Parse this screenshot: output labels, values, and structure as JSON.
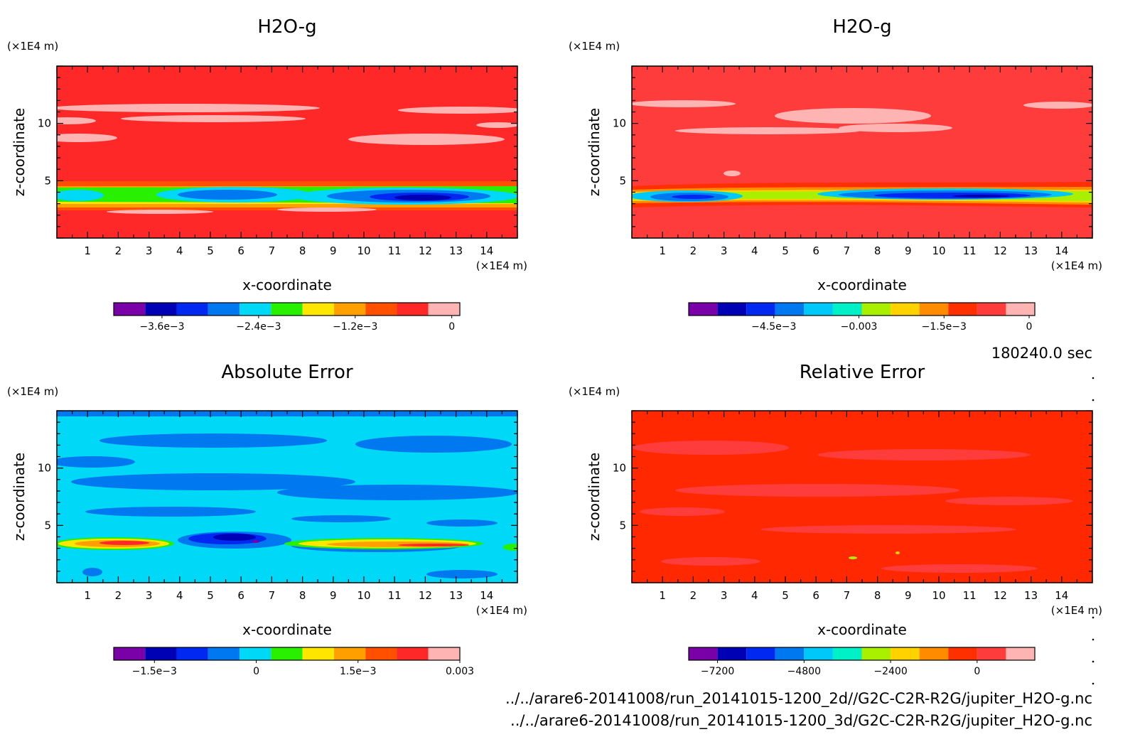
{
  "time_label": "180240.0 sec",
  "footer": [
    "../../arare6-20141008/run_20141015-1200_2d//G2C-C2R-R2G/jupiter_H2O-g.nc",
    "../../arare6-20141008/run_20141015-1200_3d/G2C-C2R-R2G/jupiter_H2O-g.nc"
  ],
  "colors": {
    "bar_2d": [
      "#7a00a8",
      "#0000b4",
      "#0028f0",
      "#0078f0",
      "#00d8f8",
      "#28f000",
      "#ffe600",
      "#ffa000",
      "#ff5000",
      "#ff2828",
      "#ffb4b4"
    ],
    "bar_3d": [
      "#7a00a8",
      "#0000b4",
      "#0028f0",
      "#0078f0",
      "#00c8f8",
      "#00f0c8",
      "#a8f000",
      "#ffd200",
      "#ff8c00",
      "#ff3000",
      "#ff3c3c",
      "#ffb4b4"
    ]
  },
  "chart_data": [
    {
      "type": "heatmap",
      "title": "H2O-g",
      "xlabel": "x-coordinate",
      "ylabel": "z-coordinate",
      "xunit": "(×1E4 m)",
      "yunit": "(×1E4 m)",
      "xlim": [
        0,
        15
      ],
      "ylim": [
        0,
        15
      ],
      "xticks": [
        1,
        2,
        3,
        4,
        5,
        6,
        7,
        8,
        9,
        10,
        11,
        12,
        13,
        14
      ],
      "yticks": [
        5,
        10
      ],
      "colorbar_labels": [
        "−3.6e−3",
        "−2.4e−3",
        "−1.2e−3",
        "0"
      ],
      "colorbar_label_values": [
        -0.0036,
        -0.0024,
        -0.0012,
        0
      ],
      "colorbar_range": [
        -0.0042,
        0.0001
      ],
      "colorbar_palette": "bar_2d"
    },
    {
      "type": "heatmap",
      "title": "H2O-g",
      "xlabel": "x-coordinate",
      "ylabel": "z-coordinate",
      "xunit": "(×1E4 m)",
      "yunit": "(×1E4 m)",
      "xlim": [
        0,
        15
      ],
      "ylim": [
        0,
        15
      ],
      "xticks": [
        1,
        2,
        3,
        4,
        5,
        6,
        7,
        8,
        9,
        10,
        11,
        12,
        13,
        14
      ],
      "yticks": [
        5,
        10
      ],
      "colorbar_labels": [
        "−4.5e−3",
        "−0.003",
        "−1.5e−3",
        "0"
      ],
      "colorbar_label_values": [
        -0.0045,
        -0.003,
        -0.0015,
        0
      ],
      "colorbar_range": [
        -0.006,
        0.0001
      ],
      "colorbar_palette": "bar_3d"
    },
    {
      "type": "heatmap",
      "title": "Absolute Error",
      "xlabel": "x-coordinate",
      "ylabel": "z-coordinate",
      "xunit": "(×1E4 m)",
      "yunit": "(×1E4 m)",
      "xlim": [
        0,
        15
      ],
      "ylim": [
        0,
        15
      ],
      "xticks": [
        1,
        2,
        3,
        4,
        5,
        6,
        7,
        8,
        9,
        10,
        11,
        12,
        13,
        14
      ],
      "yticks": [
        5,
        10
      ],
      "colorbar_labels": [
        "−1.5e−3",
        "0",
        "1.5e−3",
        "0.003"
      ],
      "colorbar_label_values": [
        -0.0015,
        0,
        0.0015,
        0.003
      ],
      "colorbar_range": [
        -0.0021,
        0.003
      ],
      "colorbar_palette": "bar_2d"
    },
    {
      "type": "heatmap",
      "title": "Relative Error",
      "xlabel": "x-coordinate",
      "ylabel": "z-coordinate",
      "xunit": "(×1E4 m)",
      "yunit": "(×1E4 m)",
      "xlim": [
        0,
        15
      ],
      "ylim": [
        0,
        15
      ],
      "xticks": [
        1,
        2,
        3,
        4,
        5,
        6,
        7,
        8,
        9,
        10,
        11,
        12,
        13,
        14
      ],
      "yticks": [
        5,
        10
      ],
      "colorbar_labels": [
        "−7200",
        "−4800",
        "−2400",
        "0"
      ],
      "colorbar_label_values": [
        -7200,
        -4800,
        -2400,
        0
      ],
      "colorbar_range": [
        -8000,
        1600
      ],
      "colorbar_palette": "bar_3d"
    }
  ]
}
